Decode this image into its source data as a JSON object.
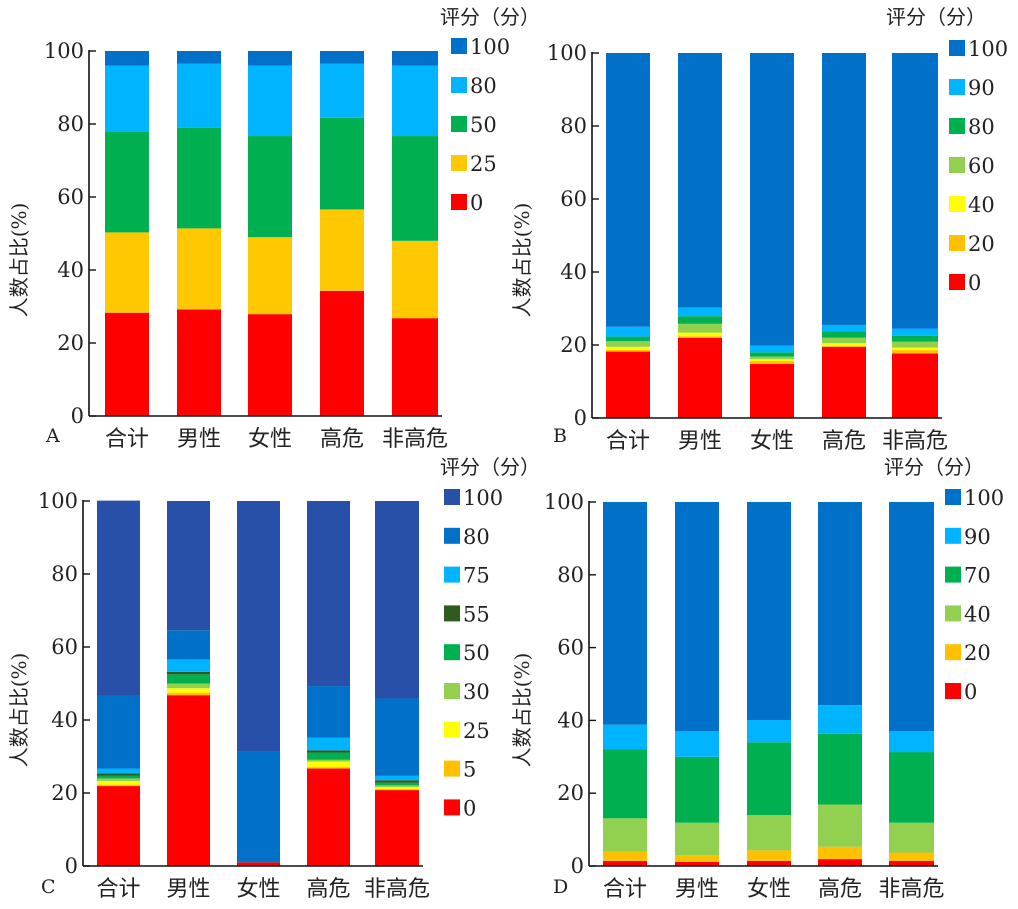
{
  "chart_data": [
    {
      "panel": "A",
      "type": "bar",
      "stacked": true,
      "title": "",
      "xlabel": "",
      "ylabel": "人数占比(%)",
      "ylim": [
        0,
        100
      ],
      "yticks": [
        0,
        20,
        40,
        60,
        80,
        100
      ],
      "categories": [
        "合计",
        "男性",
        "女性",
        "高危",
        "非高危"
      ],
      "legend_title": "评分（分）",
      "legend_position": "top-right",
      "grid": false,
      "series": [
        {
          "name": "0",
          "color": "#FF0000",
          "values": [
            28.3,
            29.2,
            27.9,
            34.3,
            26.8
          ]
        },
        {
          "name": "25",
          "color": "#FFC800",
          "values": [
            22.0,
            22.2,
            21.1,
            22.3,
            21.2
          ]
        },
        {
          "name": "50",
          "color": "#00B050",
          "values": [
            27.7,
            27.6,
            27.7,
            25.1,
            28.7
          ]
        },
        {
          "name": "80",
          "color": "#00B4FF",
          "values": [
            18.0,
            17.5,
            19.3,
            14.8,
            19.3
          ]
        },
        {
          "name": "100",
          "color": "#0070C8",
          "values": [
            4.0,
            3.5,
            4.0,
            3.5,
            4.0
          ]
        }
      ]
    },
    {
      "panel": "B",
      "type": "bar",
      "stacked": true,
      "title": "",
      "xlabel": "",
      "ylabel": "人数占比(%)",
      "ylim": [
        0,
        100
      ],
      "yticks": [
        0,
        20,
        40,
        60,
        80,
        100
      ],
      "categories": [
        "合计",
        "男性",
        "女性",
        "高危",
        "非高危"
      ],
      "legend_title": "评分（分）",
      "legend_position": "top-right",
      "grid": false,
      "series": [
        {
          "name": "0",
          "color": "#FF0000",
          "values": [
            18.2,
            22.0,
            14.8,
            19.5,
            17.7
          ]
        },
        {
          "name": "20",
          "color": "#FFC000",
          "values": [
            0.5,
            0.4,
            0.8,
            0.3,
            0.9
          ]
        },
        {
          "name": "40",
          "color": "#FFFF00",
          "values": [
            0.8,
            1.0,
            0.5,
            0.7,
            0.7
          ]
        },
        {
          "name": "60",
          "color": "#92D050",
          "values": [
            1.6,
            2.4,
            0.7,
            1.5,
            1.6
          ]
        },
        {
          "name": "80",
          "color": "#00B050",
          "values": [
            1.2,
            2.1,
            1.2,
            1.8,
            1.6
          ]
        },
        {
          "name": "90",
          "color": "#00B4FF",
          "values": [
            2.7,
            2.4,
            1.8,
            1.7,
            2.0
          ]
        },
        {
          "name": "100",
          "color": "#0070C8",
          "values": [
            75.0,
            69.7,
            80.2,
            74.5,
            75.5
          ]
        }
      ]
    },
    {
      "panel": "C",
      "type": "bar",
      "stacked": true,
      "title": "",
      "xlabel": "",
      "ylabel": "人数占比(%)",
      "ylim": [
        0,
        100
      ],
      "yticks": [
        0,
        20,
        40,
        60,
        80,
        100
      ],
      "categories": [
        "合计",
        "男性",
        "女性",
        "高危",
        "非高危"
      ],
      "legend_title": "评分（分）",
      "legend_position": "top-right",
      "grid": false,
      "series": [
        {
          "name": "0",
          "color": "#FF0000",
          "values": [
            21.9,
            46.8,
            1.0,
            26.7,
            20.8
          ]
        },
        {
          "name": "5",
          "color": "#FFC000",
          "values": [
            0.4,
            0.7,
            0.0,
            0.4,
            0.3
          ]
        },
        {
          "name": "25",
          "color": "#FFFF00",
          "values": [
            1.0,
            1.2,
            0.0,
            1.5,
            0.5
          ]
        },
        {
          "name": "30",
          "color": "#92D050",
          "values": [
            0.7,
            1.3,
            0.0,
            0.5,
            0.5
          ]
        },
        {
          "name": "50",
          "color": "#00B050",
          "values": [
            0.7,
            2.5,
            0.0,
            2.0,
            0.7
          ]
        },
        {
          "name": "55",
          "color": "#2E5C1E",
          "values": [
            0.7,
            0.7,
            0.0,
            0.6,
            0.7
          ]
        },
        {
          "name": "75",
          "color": "#00B4FF",
          "values": [
            1.3,
            3.4,
            0.0,
            3.5,
            1.2
          ]
        },
        {
          "name": "80",
          "color": "#0070C8",
          "values": [
            20.0,
            8.0,
            30.5,
            14.1,
            21.2
          ]
        },
        {
          "name": "100",
          "color": "#2850A8",
          "values": [
            53.4,
            35.4,
            68.5,
            50.7,
            54.1
          ]
        }
      ]
    },
    {
      "panel": "D",
      "type": "bar",
      "stacked": true,
      "title": "",
      "xlabel": "",
      "ylabel": "人数占比(%)",
      "ylim": [
        0,
        100
      ],
      "yticks": [
        0,
        20,
        40,
        60,
        80,
        100
      ],
      "categories": [
        "合计",
        "男性",
        "女性",
        "高危",
        "非高危"
      ],
      "legend_title": "评分（分）",
      "legend_position": "top-right",
      "grid": false,
      "series": [
        {
          "name": "0",
          "color": "#FF0000",
          "values": [
            1.4,
            1.1,
            1.4,
            1.9,
            1.4
          ]
        },
        {
          "name": "20",
          "color": "#FFC000",
          "values": [
            2.5,
            1.9,
            2.9,
            3.4,
            2.3
          ]
        },
        {
          "name": "40",
          "color": "#92D050",
          "values": [
            9.2,
            8.9,
            9.7,
            11.6,
            8.2
          ]
        },
        {
          "name": "70",
          "color": "#00B050",
          "values": [
            18.9,
            18.1,
            20.0,
            19.4,
            19.4
          ]
        },
        {
          "name": "90",
          "color": "#00B4FF",
          "values": [
            6.8,
            7.0,
            6.1,
            7.9,
            5.7
          ]
        },
        {
          "name": "100",
          "color": "#0070C8",
          "values": [
            61.2,
            63.0,
            59.9,
            55.8,
            63.0
          ]
        }
      ]
    }
  ]
}
